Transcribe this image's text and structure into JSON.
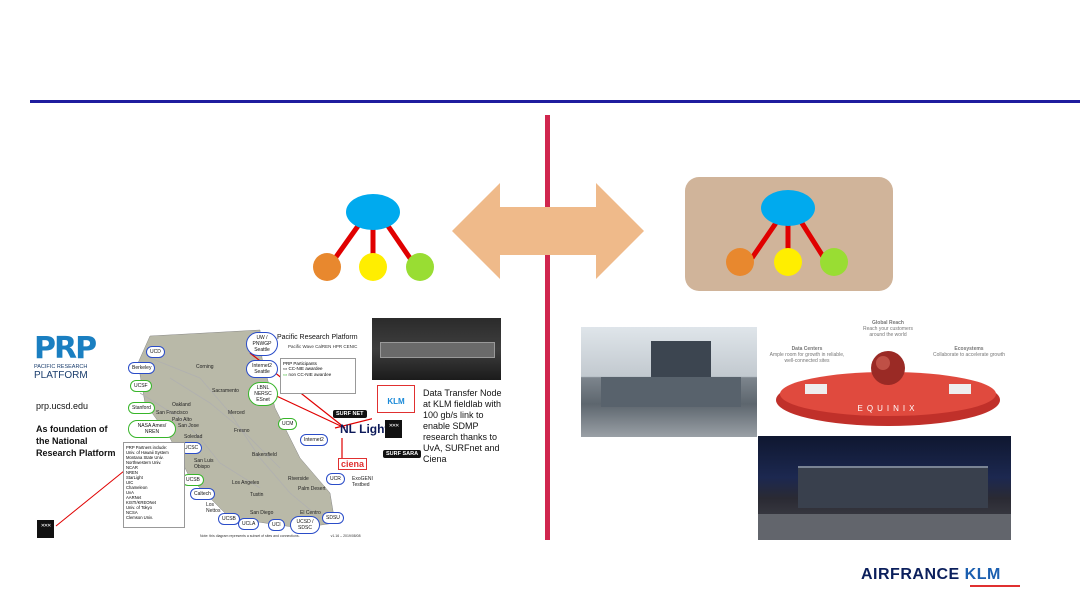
{
  "slide": {
    "colors": {
      "title_rule": "#1f1d9e",
      "divider": "#d0264e",
      "arrow": "#efba8a",
      "panel": "#d0b49a",
      "node_top": "#00aaee",
      "node_orange": "#e8882e",
      "node_yellow": "#ffee00",
      "node_green": "#99dd33",
      "edges": "#e00000"
    }
  },
  "prp": {
    "logo_letters": "PRP",
    "logo_line1": "PACIFIC RESEARCH",
    "logo_line2": "PLATFORM",
    "url": "prp.ucsd.edu",
    "foundation_text": "As foundation of the National Research Platform"
  },
  "map": {
    "title": "Pacific Research Platform",
    "subtitle": "Pacific Wave  CalREN HPR  CENIC",
    "legend_title": "PRP Participants",
    "legend_items": [
      "CC-NIE awardee",
      "non CC-NIE awardee"
    ],
    "clouds": [
      "UCD",
      "Berkeley",
      "UCSF",
      "Stanford",
      "NASA Ames/ NREN",
      "UCSC",
      "UCSB",
      "Caltech",
      "UCSB",
      "UCLA",
      "UCI",
      "UCSD / SDSC",
      "SDSU",
      "UCR",
      "UCM",
      "UW / PNWGP Seattle",
      "Internet2 Seattle",
      "LBNL NERSC ESnet",
      "Internet2"
    ],
    "cities": [
      "Corning",
      "Sacramento",
      "Oakland",
      "San Francisco",
      "Palo Alto",
      "San Jose",
      "Merced",
      "Soledad",
      "Fresno",
      "San Luis Obispo",
      "Bakersfield",
      "Los Angeles",
      "Riverside",
      "Palm Desert",
      "Tustin",
      "Los Nettos",
      "San Diego",
      "El Centro"
    ],
    "participants_title": "PRP Partners include:",
    "participants": [
      "Univ. of Hawaii System",
      "Montana State Univ.",
      "Northwestern Univ.",
      "NCAR",
      "NREN",
      "StarLight",
      "UIC",
      "Chameleon",
      "UvA",
      "AARNet",
      "KISTI/KREONet",
      "Univ. of Tokyo",
      "NCSA",
      "Clemson Univ."
    ],
    "note": "Note: this diagram represents a subset of sites and connections.",
    "version": "v1.16 – 2019/08/08"
  },
  "dtn": {
    "klm_logo": "KLM",
    "text": "Data Transfer Node at KLM fieldlab with 100 gb/s link to enable SDMP research thanks to UvA, SURFnet and Ciena",
    "surfnet_badge": "SURF NET",
    "surfsara_badge": "SURF SARA",
    "nl_light": "NL Light",
    "ciena": "ciena",
    "exogeni": "ExoGENI Testbed",
    "uva_mark": "✕✕✕"
  },
  "equinix": {
    "global_reach_title": "Global Reach",
    "global_reach_desc": "Reach your customers around the world",
    "data_centers_title": "Data Centers",
    "data_centers_desc": "Ample room for growth in reliable, well-connected sites",
    "ecosystems_title": "Ecosystems",
    "ecosystems_desc": "Collaborate to accelerate growth",
    "brand": "EQUINIX"
  },
  "footer": {
    "logo_part1": "AIRFRANCE",
    "logo_part2": "KLM"
  }
}
